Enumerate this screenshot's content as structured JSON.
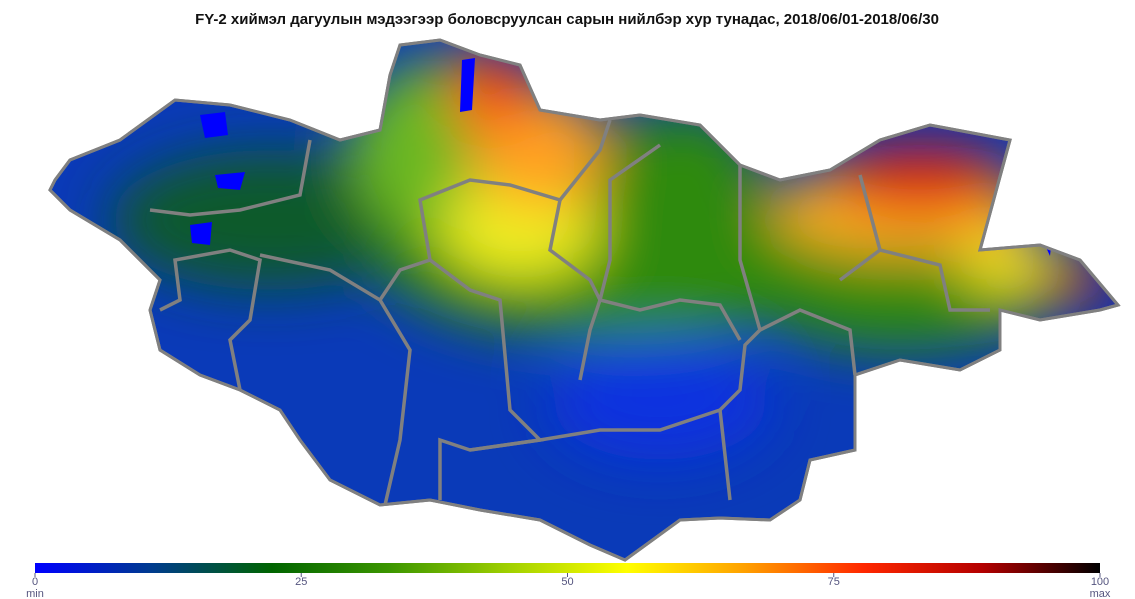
{
  "title": "FY-2 хиймэл дагуулын мэдээгээр боловсруулсан сарын нийлбэр хур тунадас, 2018/06/01-2018/06/30",
  "colorbar": {
    "lim": [
      0,
      100
    ],
    "ticks": [
      0,
      25,
      50,
      75,
      100
    ],
    "min_label": "min",
    "max_label": "max",
    "colors": [
      "#0000ff",
      "#003c8c",
      "#006400",
      "#3c9600",
      "#a0d000",
      "#ffff00",
      "#ffa000",
      "#ff2800",
      "#b40000",
      "#000000"
    ]
  }
}
